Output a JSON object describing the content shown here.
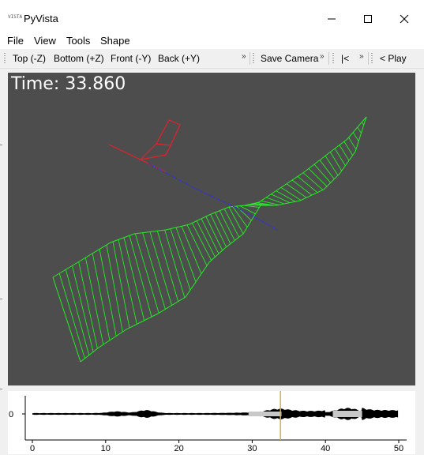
{
  "window": {
    "title": "PyVista",
    "app_icon_text": "VISTA",
    "controls": {
      "minimize": "—",
      "maximize": "☐",
      "close": "✕"
    }
  },
  "menu": [
    "File",
    "View",
    "Tools",
    "Shape"
  ],
  "toolbar": {
    "views": [
      "Top (-Z)",
      "Bottom (+Z)",
      "Front (-Y)",
      "Back (+Y)"
    ],
    "save_camera": "Save Camera",
    "rewind": "|<",
    "play": "< Play",
    "more": "»"
  },
  "viewport": {
    "time_label": "Time: 33.860",
    "background": "#4d4d4d",
    "colors": {
      "ribbon": "#22ee22",
      "frame": "#e8202a",
      "axis": "#3030e0",
      "text": "#ffffff"
    }
  },
  "signal_plot": {
    "y_tick": "0",
    "x_ticks": [
      "0",
      "10",
      "20",
      "30",
      "40",
      "50"
    ],
    "cursor_time": 33.86,
    "colors": {
      "signal": "#000000",
      "highlight": "#c8c8c8",
      "cursor": "#d4b24a"
    }
  }
}
